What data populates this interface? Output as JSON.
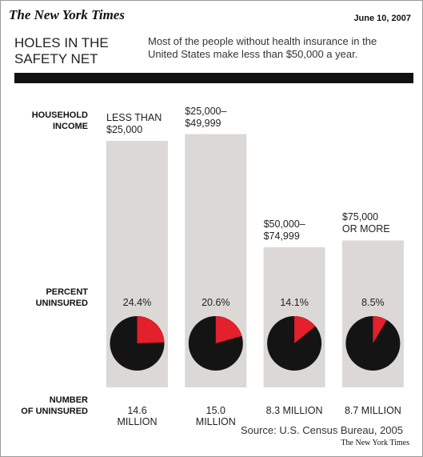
{
  "header": {
    "logo": "The New York Times",
    "date": "June 10, 2007"
  },
  "chart_data": {
    "type": "bar",
    "title": "HOLES IN THE\nSAFETY NET",
    "subtitle": "Most of the people without health insurance in the United States make less than $50,000 a year.",
    "row_labels": [
      "HOUSEHOLD\nINCOME",
      "PERCENT\nUNINSURED",
      "NUMBER\nOF UNINSURED"
    ],
    "categories": [
      "LESS THAN\n$25,000",
      "$25,000–\n$49,999",
      "$50,000–\n$74,999",
      "$75,000\nOR MORE"
    ],
    "values": [
      14.6,
      15.0,
      8.3,
      8.7
    ],
    "value_labels": [
      "14.6 MILLION",
      "15.0 MILLION",
      "8.3 MILLION",
      "8.7 MILLION"
    ],
    "color": "#dbd8d6",
    "percent_uninsured": {
      "values": [
        24.4,
        20.6,
        14.1,
        8.5
      ],
      "value_labels": [
        "24.4%",
        "20.6%",
        "14.1%",
        "8.5%"
      ],
      "color": "#e3202b"
    },
    "source": "Source: U.S. Census Bureau, 2005"
  },
  "footer": {
    "credit": "The New York Times"
  }
}
